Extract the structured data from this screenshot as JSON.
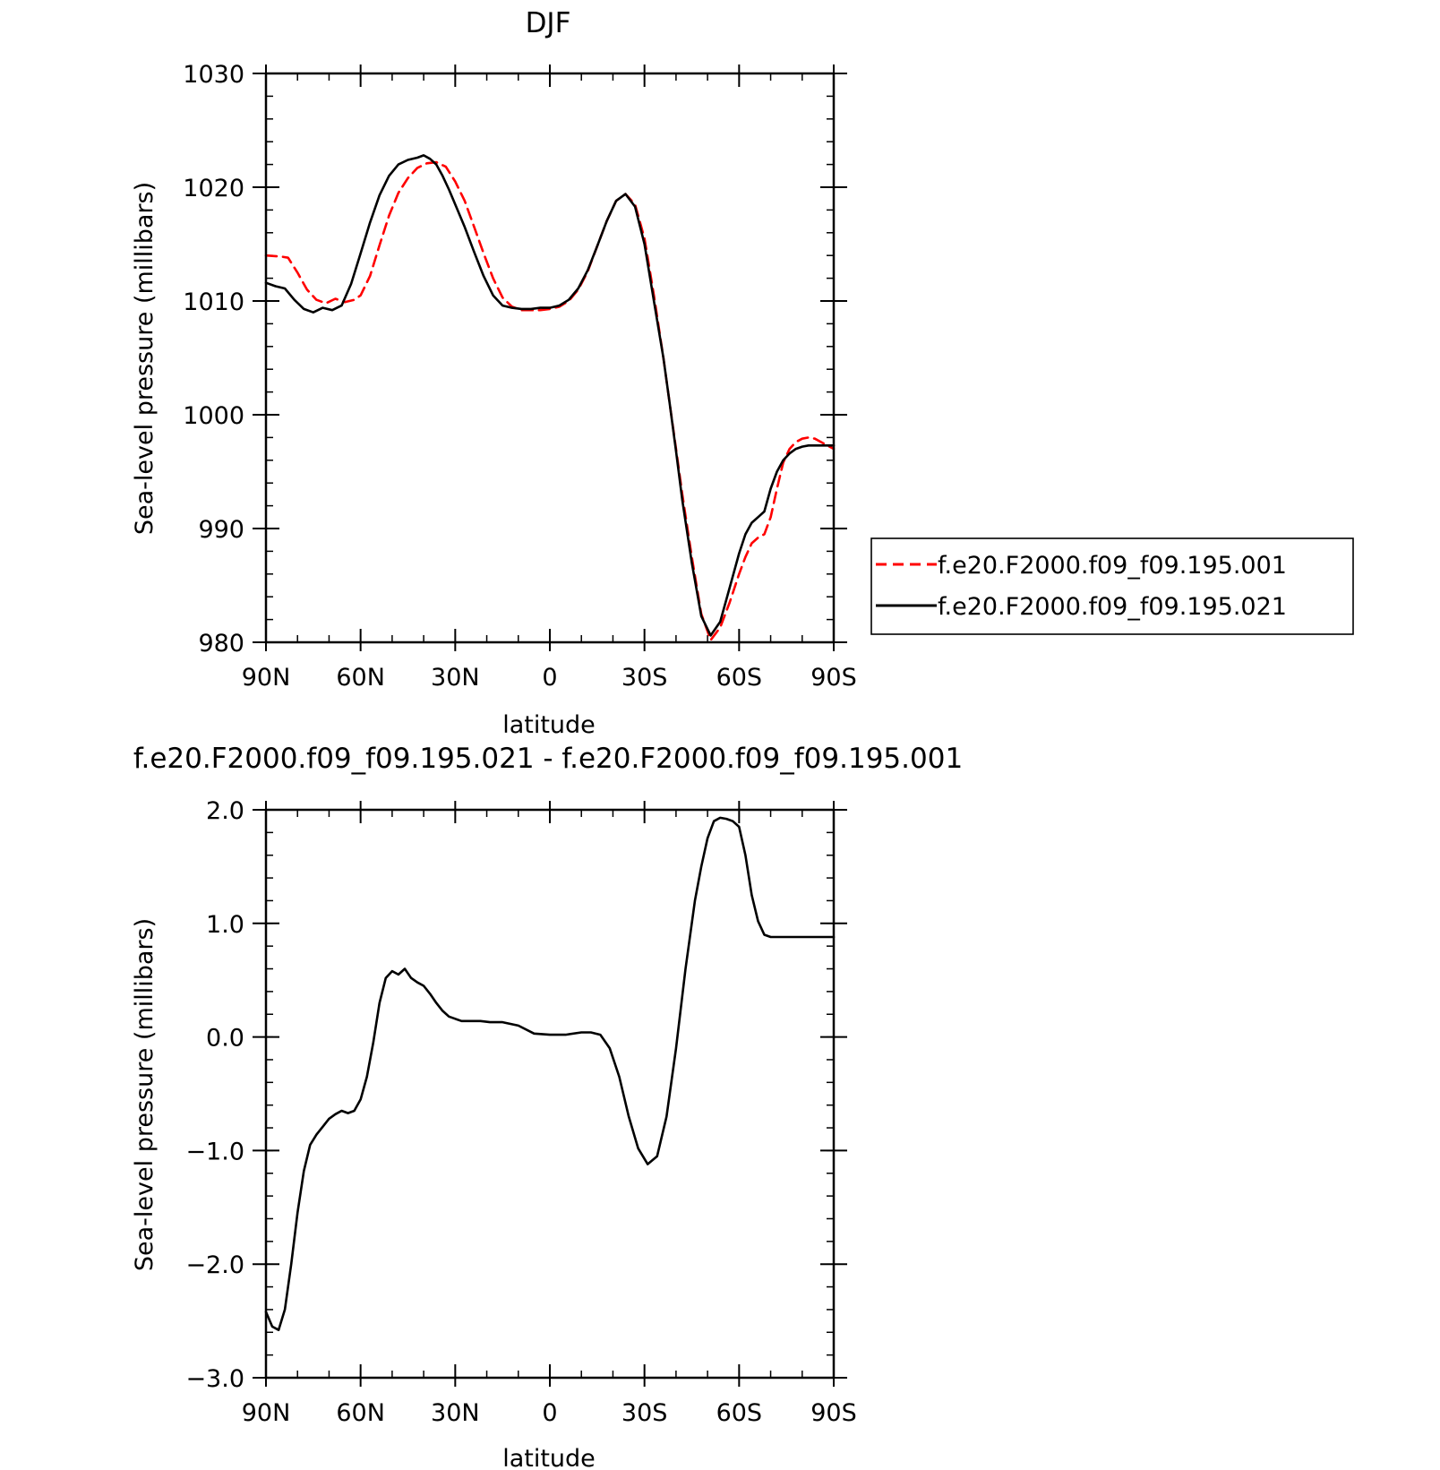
{
  "chart_data": [
    {
      "type": "line",
      "title": "DJF",
      "xlabel": "latitude",
      "ylabel": "Sea-level pressure (millibars)",
      "xlim": [
        -90,
        90
      ],
      "ylim": [
        980,
        1030
      ],
      "x_tick_values": [
        -90,
        -60,
        -30,
        0,
        30,
        60,
        90
      ],
      "x_tick_labels": [
        "90N",
        "60N",
        "30N",
        "0",
        "30S",
        "60S",
        "90S"
      ],
      "y_tick_values": [
        980,
        990,
        1000,
        1010,
        1020,
        1030
      ],
      "y_tick_labels": [
        "980",
        "990",
        "1000",
        "1010",
        "1020",
        "1030"
      ],
      "legend_position": "right",
      "series": [
        {
          "name": "f.e20.F2000.f09_f09.195.001",
          "color": "#ff0000",
          "dash": "dashed",
          "x": [
            -90,
            -85,
            -83,
            -80,
            -77,
            -74,
            -71,
            -68,
            -65,
            -62,
            -60,
            -57,
            -54,
            -51,
            -48,
            -45,
            -42,
            -39,
            -36,
            -33,
            -30,
            -27,
            -24,
            -21,
            -18,
            -15,
            -12,
            -9,
            -6,
            -3,
            0,
            3,
            6,
            9,
            12,
            15,
            18,
            21,
            24,
            27,
            30,
            33,
            36,
            38,
            40,
            42,
            45,
            48,
            51,
            54,
            57,
            60,
            62,
            64,
            66,
            68,
            70,
            72,
            74,
            76,
            78,
            80,
            82,
            84,
            86,
            88,
            90
          ],
          "y": [
            1014.0,
            1013.9,
            1013.8,
            1012.5,
            1011.0,
            1010.1,
            1009.8,
            1010.2,
            1009.9,
            1010.1,
            1010.5,
            1012.2,
            1014.9,
            1017.5,
            1019.5,
            1020.8,
            1021.7,
            1022.1,
            1022.2,
            1021.8,
            1020.5,
            1018.8,
            1016.5,
            1014.2,
            1012.0,
            1010.3,
            1009.5,
            1009.2,
            1009.2,
            1009.2,
            1009.3,
            1009.5,
            1010.0,
            1011.0,
            1012.6,
            1014.8,
            1017.0,
            1018.8,
            1019.4,
            1018.5,
            1015.5,
            1010.5,
            1005.0,
            1001.0,
            997.0,
            993.0,
            987.5,
            982.5,
            980.2,
            981.3,
            983.5,
            986.0,
            987.5,
            988.7,
            989.2,
            989.5,
            991.0,
            993.5,
            995.8,
            997.0,
            997.6,
            997.9,
            998.0,
            997.9,
            997.6,
            997.3,
            997.0
          ]
        },
        {
          "name": "f.e20.F2000.f09_f09.195.021",
          "color": "#000000",
          "dash": "solid",
          "x": [
            -90,
            -87,
            -84,
            -81,
            -78,
            -75,
            -72,
            -69,
            -66,
            -63,
            -60,
            -57,
            -54,
            -51,
            -48,
            -45,
            -42,
            -40,
            -38,
            -36,
            -34,
            -32,
            -30,
            -27,
            -24,
            -21,
            -18,
            -15,
            -12,
            -9,
            -6,
            -3,
            0,
            3,
            6,
            9,
            12,
            15,
            18,
            21,
            24,
            27,
            30,
            33,
            36,
            38,
            40,
            42,
            45,
            48,
            51,
            54,
            57,
            60,
            62,
            64,
            66,
            68,
            70,
            72,
            74,
            76,
            78,
            80,
            82,
            84,
            86,
            88,
            90
          ],
          "y": [
            1011.6,
            1011.3,
            1011.1,
            1010.1,
            1009.3,
            1009.0,
            1009.4,
            1009.2,
            1009.6,
            1011.5,
            1014.2,
            1016.9,
            1019.3,
            1021.0,
            1022.0,
            1022.4,
            1022.6,
            1022.8,
            1022.5,
            1022.0,
            1021.0,
            1019.8,
            1018.5,
            1016.5,
            1014.3,
            1012.2,
            1010.5,
            1009.6,
            1009.4,
            1009.3,
            1009.3,
            1009.4,
            1009.4,
            1009.6,
            1010.1,
            1011.1,
            1012.7,
            1014.8,
            1017.0,
            1018.8,
            1019.4,
            1018.3,
            1015.0,
            1010.0,
            1005.0,
            1001.0,
            996.8,
            992.5,
            987.0,
            982.3,
            980.6,
            981.8,
            984.8,
            987.8,
            989.5,
            990.5,
            991.0,
            991.5,
            993.5,
            995.0,
            996.0,
            996.6,
            997.0,
            997.2,
            997.3,
            997.3,
            997.3,
            997.3,
            997.3
          ]
        }
      ]
    },
    {
      "type": "line",
      "title": "f.e20.F2000.f09_f09.195.021 - f.e20.F2000.f09_f09.195.001",
      "xlabel": "latitude",
      "ylabel": "Sea-level pressure (millibars)",
      "xlim": [
        -90,
        90
      ],
      "ylim": [
        -3.0,
        2.0
      ],
      "x_tick_values": [
        -90,
        -60,
        -30,
        0,
        30,
        60,
        90
      ],
      "x_tick_labels": [
        "90N",
        "60N",
        "30N",
        "0",
        "30S",
        "60S",
        "90S"
      ],
      "y_tick_values": [
        -3.0,
        -2.0,
        -1.0,
        0.0,
        1.0,
        2.0
      ],
      "y_tick_labels": [
        "−3.0",
        "−2.0",
        "−1.0",
        "0.0",
        "1.0",
        "2.0"
      ],
      "series": [
        {
          "color": "#000000",
          "x": [
            -90,
            -88,
            -86,
            -84,
            -82,
            -80,
            -78,
            -76,
            -74,
            -72,
            -70,
            -68,
            -66,
            -64,
            -62,
            -60,
            -58,
            -56,
            -54,
            -52,
            -50,
            -48,
            -46,
            -44,
            -42,
            -40,
            -38,
            -36,
            -34,
            -32,
            -30,
            -28,
            -25,
            -22,
            -19,
            -15,
            -10,
            -5,
            0,
            5,
            10,
            13,
            16,
            19,
            22,
            25,
            28,
            31,
            34,
            37,
            40,
            43,
            46,
            48,
            50,
            52,
            54,
            56,
            58,
            60,
            62,
            64,
            66,
            68,
            70,
            72,
            74,
            76,
            78,
            80,
            82,
            84,
            86,
            88,
            90
          ],
          "y": [
            -2.42,
            -2.55,
            -2.58,
            -2.4,
            -2.0,
            -1.55,
            -1.18,
            -0.95,
            -0.86,
            -0.79,
            -0.72,
            -0.68,
            -0.65,
            -0.67,
            -0.65,
            -0.55,
            -0.35,
            -0.05,
            0.3,
            0.52,
            0.58,
            0.55,
            0.6,
            0.52,
            0.48,
            0.45,
            0.38,
            0.3,
            0.23,
            0.18,
            0.16,
            0.14,
            0.14,
            0.14,
            0.13,
            0.13,
            0.1,
            0.03,
            0.02,
            0.02,
            0.04,
            0.04,
            0.02,
            -0.1,
            -0.35,
            -0.7,
            -0.98,
            -1.12,
            -1.05,
            -0.7,
            -0.1,
            0.6,
            1.2,
            1.5,
            1.75,
            1.9,
            1.93,
            1.92,
            1.9,
            1.85,
            1.6,
            1.25,
            1.02,
            0.9,
            0.88,
            0.88,
            0.88,
            0.88,
            0.88,
            0.88,
            0.88,
            0.88,
            0.88,
            0.88,
            0.88
          ]
        }
      ]
    }
  ]
}
